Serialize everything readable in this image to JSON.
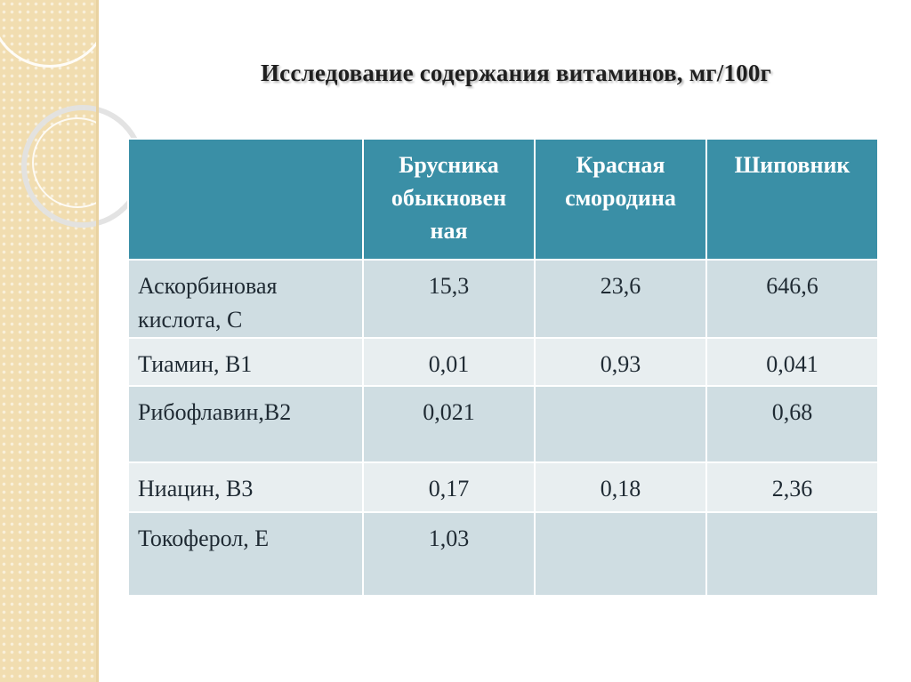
{
  "slide": {
    "title": "Исследование содержания витаминов, мг/100г"
  },
  "table": {
    "headers": [
      "",
      "Брусника обыкновенная",
      "Красная смородина",
      "Шиповник"
    ],
    "header_lines": {
      "col1": [
        "Брусника",
        "обыкновен",
        "ная"
      ],
      "col2": [
        "Красная",
        "смородина"
      ],
      "col3": [
        "Шиповник"
      ]
    },
    "rows": [
      {
        "label_lines": [
          "Аскорбиновая",
          "кислота, С"
        ],
        "values": [
          "15,3",
          "23,6",
          "646,6"
        ]
      },
      {
        "label_lines": [
          "Тиамин, В1"
        ],
        "values": [
          "0,01",
          "0,93",
          "0,041"
        ]
      },
      {
        "label_lines": [
          "Рибофлавин,В2"
        ],
        "values": [
          "0,021",
          "",
          "0,68"
        ]
      },
      {
        "label_lines": [
          "Ниацин, В3"
        ],
        "values": [
          "0,17",
          "0,18",
          "2,36"
        ]
      },
      {
        "label_lines": [
          "Токоферол, Е"
        ],
        "values": [
          "1,03",
          "",
          ""
        ]
      }
    ]
  },
  "colors": {
    "header_bg": "#3a8fa6",
    "row_dark": "#cfdde2",
    "row_light": "#e8eef0",
    "sidebar": "#f1ddb0"
  }
}
